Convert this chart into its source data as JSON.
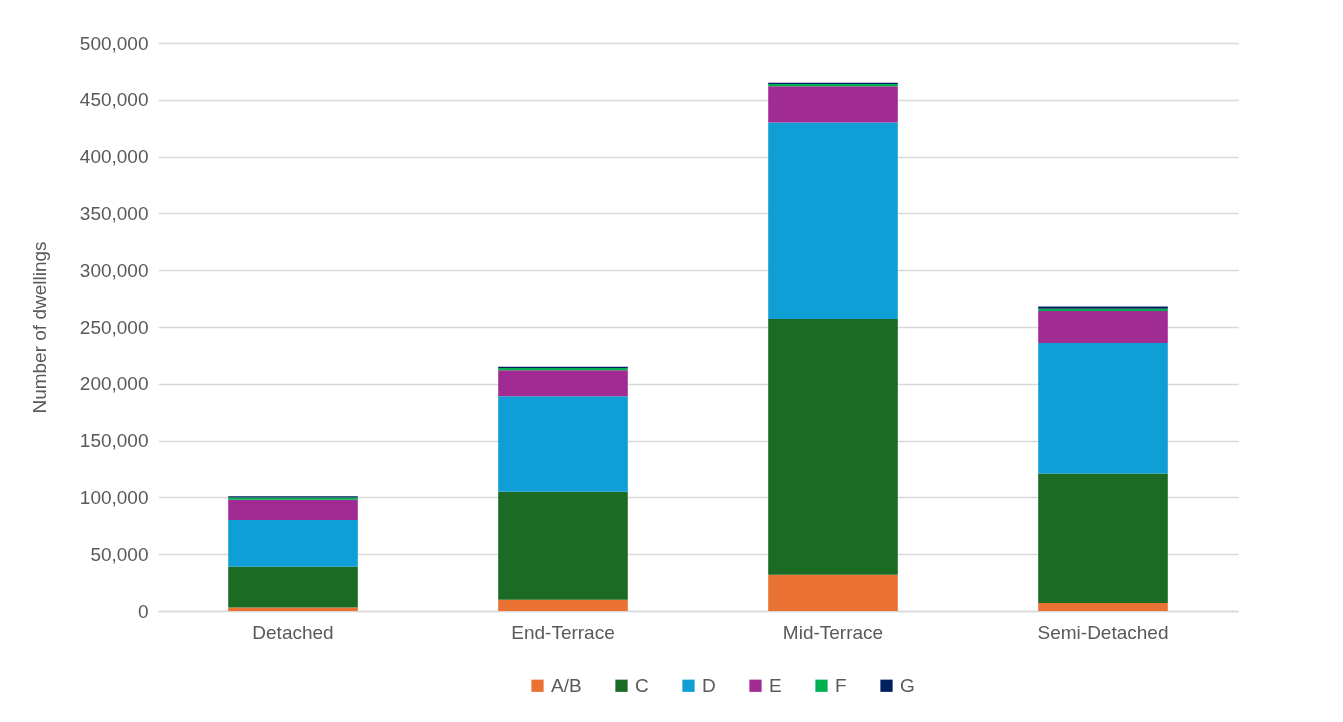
{
  "chart_data": {
    "type": "bar",
    "stacked": true,
    "ylabel": "Number of dwellings",
    "categories": [
      "Detached",
      "End-Terrace",
      "Mid-Terrace",
      "Semi-Detached"
    ],
    "series": [
      {
        "name": "A/B",
        "color": "#e97132",
        "values": [
          3000,
          10000,
          32000,
          7000
        ]
      },
      {
        "name": "C",
        "color": "#1b6b24",
        "values": [
          36000,
          95000,
          225000,
          114000
        ]
      },
      {
        "name": "D",
        "color": "#0f9ed5",
        "values": [
          41000,
          84000,
          173000,
          115000
        ]
      },
      {
        "name": "E",
        "color": "#a02b93",
        "values": [
          18000,
          23000,
          32000,
          28000
        ]
      },
      {
        "name": "F",
        "color": "#00b050",
        "values": [
          2000,
          2000,
          2000,
          2000
        ]
      },
      {
        "name": "G",
        "color": "#002060",
        "values": [
          1000,
          1000,
          1000,
          2000
        ]
      }
    ],
    "ylim": [
      0,
      500000
    ],
    "yticks": [
      0,
      {
        "value": 50000,
        "label": "50,000"
      },
      {
        "value": 100000,
        "label": "100,000"
      },
      {
        "value": 150000,
        "label": "150,000"
      },
      {
        "value": 200000,
        "label": "200,000"
      },
      {
        "value": 250000,
        "label": "250,000"
      },
      {
        "value": 300000,
        "label": "300,000"
      },
      {
        "value": 350000,
        "label": "350,000"
      },
      {
        "value": 400000,
        "label": "400,000"
      },
      {
        "value": 450000,
        "label": "450,000"
      },
      {
        "value": 500000,
        "label": "500,000"
      }
    ],
    "grid": "y",
    "legend": "bottom"
  }
}
